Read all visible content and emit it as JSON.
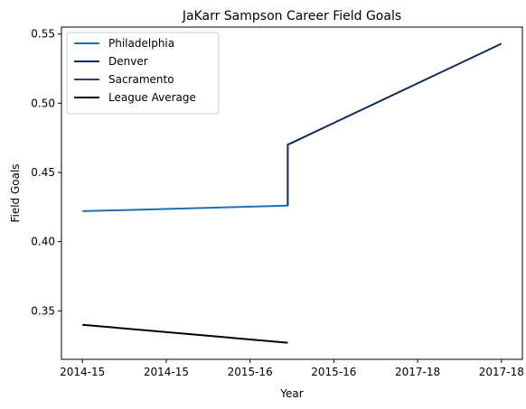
{
  "chart_data": {
    "type": "line",
    "title": "JaKarr Sampson Career Field Goals",
    "xlabel": "Year",
    "ylabel": "Field Goals",
    "xlim": [
      -0.25,
      5.25
    ],
    "ylim": [
      0.315,
      0.555
    ],
    "xticks": [
      {
        "x": 0,
        "label": "2014-15"
      },
      {
        "x": 1,
        "label": "2014-15"
      },
      {
        "x": 2,
        "label": "2015-16"
      },
      {
        "x": 3,
        "label": "2015-16"
      },
      {
        "x": 4,
        "label": "2017-18"
      },
      {
        "x": 5,
        "label": "2017-18"
      }
    ],
    "yticks": [
      0.35,
      0.4,
      0.45,
      0.5,
      0.55
    ],
    "yticks_labels": [
      "0.35",
      "0.40",
      "0.45",
      "0.50",
      "0.55"
    ],
    "grid": false,
    "legend_position": "top-left",
    "series": [
      {
        "name": "Philadelphia",
        "color": "#1f6fb0",
        "points": [
          [
            0,
            0.422
          ],
          [
            2.45,
            0.426
          ]
        ]
      },
      {
        "name": "Denver",
        "color": "#0e2a58",
        "points": [
          [
            2.45,
            0.426
          ],
          [
            2.45,
            0.47
          ],
          [
            5,
            0.543
          ]
        ]
      },
      {
        "name": "Sacramento",
        "color": "#5b2d82",
        "points": []
      },
      {
        "name": "League Average",
        "color": "#000000",
        "points": [
          [
            0,
            0.34
          ],
          [
            2.45,
            0.327
          ]
        ]
      }
    ]
  }
}
